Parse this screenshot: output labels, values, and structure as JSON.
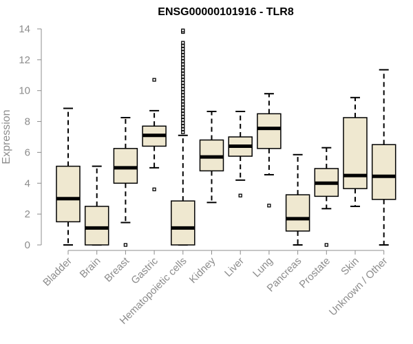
{
  "chart_data": {
    "type": "box",
    "title": "ENSG00000101916 - TLR8",
    "ylabel": "Expression",
    "xlabel": "",
    "ylim": [
      0,
      14
    ],
    "yticks": [
      0,
      2,
      4,
      6,
      8,
      10,
      12,
      14
    ],
    "grid": false,
    "categories": [
      "Bladder",
      "Brain",
      "Breast",
      "Gastric",
      "Hematopoietic cells",
      "Kidney",
      "Liver",
      "Lung",
      "Pancreas",
      "Prostate",
      "Skin",
      "Unknown / Other"
    ],
    "boxes": [
      {
        "min": 0.0,
        "q1": 1.5,
        "median": 3.0,
        "q3": 5.1,
        "max": 8.85,
        "outliers": []
      },
      {
        "min": 0.0,
        "q1": 0.0,
        "median": 1.1,
        "q3": 2.5,
        "max": 5.1,
        "outliers": []
      },
      {
        "min": 1.45,
        "q1": 4.0,
        "median": 5.0,
        "q3": 6.25,
        "max": 8.25,
        "outliers": [
          0.0
        ]
      },
      {
        "min": 5.0,
        "q1": 6.4,
        "median": 7.1,
        "q3": 7.7,
        "max": 8.7,
        "outliers": [
          3.6,
          10.7
        ]
      },
      {
        "min": 0.0,
        "q1": 0.0,
        "median": 1.1,
        "q3": 2.85,
        "max": 7.1,
        "outliers": [
          7.3,
          7.5,
          7.7,
          7.9,
          8.1,
          8.3,
          8.5,
          8.7,
          8.9,
          9.1,
          9.3,
          9.5,
          9.7,
          9.9,
          10.1,
          10.3,
          10.5,
          10.7,
          10.9,
          11.1,
          11.3,
          11.5,
          11.7,
          11.9,
          12.1,
          12.3,
          12.5,
          12.7,
          12.9,
          13.1,
          13.8,
          13.9
        ]
      },
      {
        "min": 2.75,
        "q1": 4.8,
        "median": 5.7,
        "q3": 6.8,
        "max": 8.65,
        "outliers": []
      },
      {
        "min": 4.2,
        "q1": 5.75,
        "median": 6.4,
        "q3": 7.0,
        "max": 8.65,
        "outliers": [
          3.2
        ]
      },
      {
        "min": 4.55,
        "q1": 6.25,
        "median": 7.55,
        "q3": 8.5,
        "max": 9.8,
        "outliers": [
          2.55
        ]
      },
      {
        "min": 0.0,
        "q1": 0.9,
        "median": 1.7,
        "q3": 3.25,
        "max": 5.85,
        "outliers": []
      },
      {
        "min": 2.35,
        "q1": 3.15,
        "median": 4.0,
        "q3": 4.95,
        "max": 6.3,
        "outliers": [
          0.0
        ]
      },
      {
        "min": 2.5,
        "q1": 3.65,
        "median": 4.5,
        "q3": 8.25,
        "max": 9.55,
        "outliers": []
      },
      {
        "min": 0.0,
        "q1": 2.95,
        "median": 4.45,
        "q3": 6.5,
        "max": 11.35,
        "outliers": []
      }
    ]
  }
}
